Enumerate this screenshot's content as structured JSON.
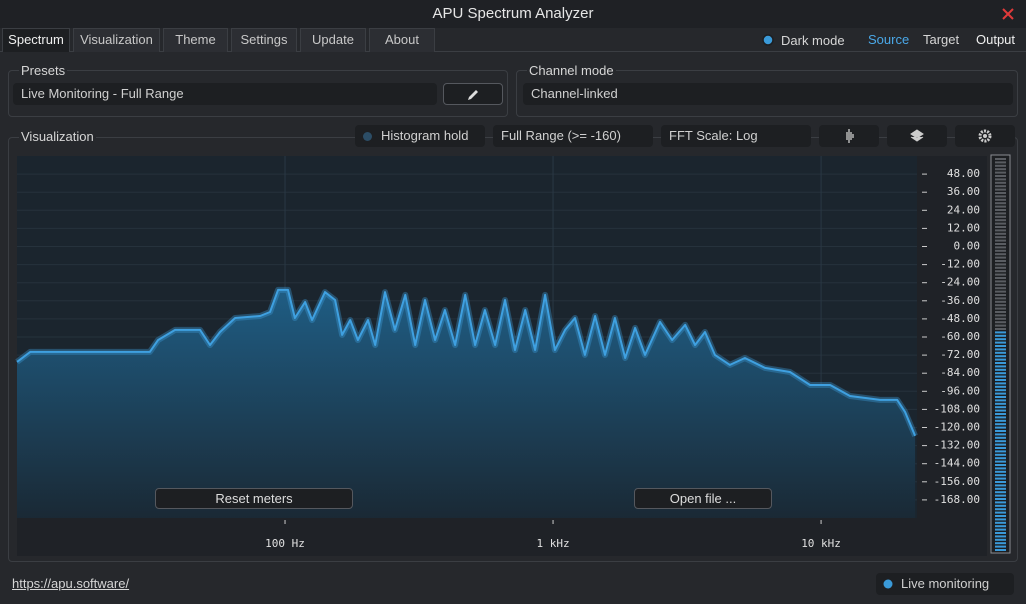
{
  "window": {
    "title": "APU Spectrum Analyzer"
  },
  "tabs": [
    "Spectrum",
    "Visualization",
    "Theme",
    "Settings",
    "Update",
    "About"
  ],
  "header": {
    "dark_mode": "Dark mode",
    "links": [
      "Source",
      "Target",
      "Output"
    ]
  },
  "presets": {
    "label": "Presets",
    "value": "Live Monitoring - Full Range"
  },
  "channel_mode": {
    "label": "Channel mode",
    "value": "Channel-linked"
  },
  "visualization": {
    "label": "Visualization",
    "histogram_hold": "Histogram hold",
    "range": "Full Range (>= -160)",
    "fft_scale": "FFT Scale: Log",
    "reset": "Reset meters",
    "open": "Open file ..."
  },
  "footer": {
    "link": "https://apu.software/",
    "live": "Live monitoring"
  },
  "chart_data": {
    "type": "area",
    "log_x": true,
    "grid": true,
    "color": "#3fa0e0",
    "xlim": [
      10,
      22800
    ],
    "ylim": [
      -180,
      60
    ],
    "xticks": [
      {
        "value": 100,
        "label": "100 Hz"
      },
      {
        "value": 1000,
        "label": "1 kHz"
      },
      {
        "value": 10000,
        "label": "10 kHz"
      }
    ],
    "yticks": [
      {
        "value": 48,
        "label": "48.00"
      },
      {
        "value": 36,
        "label": "36.00"
      },
      {
        "value": 24,
        "label": "24.00"
      },
      {
        "value": 12,
        "label": "12.00"
      },
      {
        "value": 0,
        "label": "0.00"
      },
      {
        "value": -12,
        "label": "-12.00"
      },
      {
        "value": -24,
        "label": "-24.00"
      },
      {
        "value": -36,
        "label": "-36.00"
      },
      {
        "value": -48,
        "label": "-48.00"
      },
      {
        "value": -60,
        "label": "-60.00"
      },
      {
        "value": -72,
        "label": "-72.00"
      },
      {
        "value": -84,
        "label": "-84.00"
      },
      {
        "value": -96,
        "label": "-96.00"
      },
      {
        "value": -108,
        "label": "-108.00"
      },
      {
        "value": -120,
        "label": "-120.00"
      },
      {
        "value": -132,
        "label": "-132.00"
      },
      {
        "value": -144,
        "label": "-144.00"
      },
      {
        "value": -156,
        "label": "-156.00"
      },
      {
        "value": -168,
        "label": "-168.00"
      }
    ],
    "x": [
      10,
      11.2,
      31.3,
      33.6,
      38.9,
      48.2,
      52.5,
      57.2,
      65.1,
      80.7,
      87.9,
      94.2,
      102.6,
      108.9,
      118.8,
      126.2,
      141,
      153.8,
      163.3,
      175,
      187,
      204,
      217,
      236,
      257,
      281,
      306,
      333,
      363,
      395,
      431,
      470,
      512,
      557,
      608,
      662,
      721,
      787,
      857,
      934,
      1016,
      1109,
      1208,
      1315,
      1435,
      1563,
      1702,
      1858,
      2023,
      2203,
      2506,
      2780,
      3112,
      3388,
      3690,
      4018,
      4571,
      5200,
      6180,
      7656,
      9099,
      10813,
      12823,
      16600,
      19230,
      20560,
      22440
    ],
    "values": [
      -76.5,
      -69.9,
      -69.9,
      -62,
      -55.3,
      -55.3,
      -65.3,
      -56.7,
      -47.4,
      -46.1,
      -43.4,
      -28.8,
      -28.8,
      -47.4,
      -36.8,
      -48.7,
      -30.2,
      -35.5,
      -58.6,
      -48.7,
      -62,
      -48.7,
      -65.3,
      -30.2,
      -55.3,
      -32.1,
      -65.3,
      -35.5,
      -62,
      -42.1,
      -65.3,
      -32.1,
      -65.3,
      -42.1,
      -65.3,
      -35.5,
      -68.6,
      -42.1,
      -68.6,
      -32.1,
      -68.6,
      -55.3,
      -47.4,
      -71.9,
      -46.1,
      -71.9,
      -47.4,
      -73.9,
      -54,
      -71.9,
      -50,
      -62,
      -52,
      -65.3,
      -56.7,
      -71.9,
      -78.5,
      -73.9,
      -80.5,
      -83.2,
      -91.8,
      -91.8,
      -99.1,
      -101.7,
      -101.7,
      -109.6,
      -125.5
    ]
  }
}
